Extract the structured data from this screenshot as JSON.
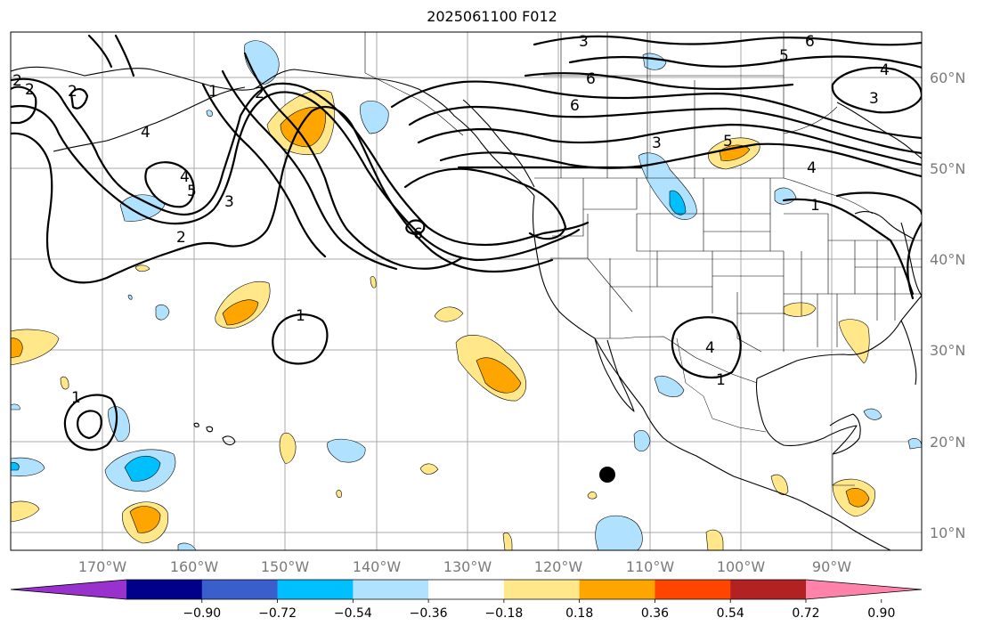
{
  "title": "2025061100 F012",
  "map": {
    "lat_labels": [
      "60°N",
      "50°N",
      "40°N",
      "30°N",
      "20°N",
      "10°N"
    ],
    "lon_labels": [
      "170°W",
      "160°W",
      "150°W",
      "140°W",
      "130°W",
      "120°W",
      "110°W",
      "100°W",
      "90°W"
    ],
    "contour_labels": [
      "3",
      "6",
      "5",
      "4",
      "6",
      "6",
      "3",
      "5",
      "4",
      "1",
      "2",
      "3",
      "4",
      "5",
      "4",
      "2",
      "3",
      "2",
      "6",
      "1",
      "4",
      "1",
      "1",
      "1",
      "2",
      "2"
    ]
  },
  "colorbar": {
    "ticks": [
      "−0.90",
      "−0.72",
      "−0.54",
      "−0.36",
      "−0.18",
      "0.18",
      "0.36",
      "0.54",
      "0.72",
      "0.90"
    ],
    "colors": [
      "#9932CC",
      "#00008B",
      "#3A5FCD",
      "#00BFFF",
      "#B0E2FF",
      "#FFFFFF",
      "#FFE78A",
      "#FFA500",
      "#FF4500",
      "#B22222",
      "#FF82AB"
    ]
  }
}
